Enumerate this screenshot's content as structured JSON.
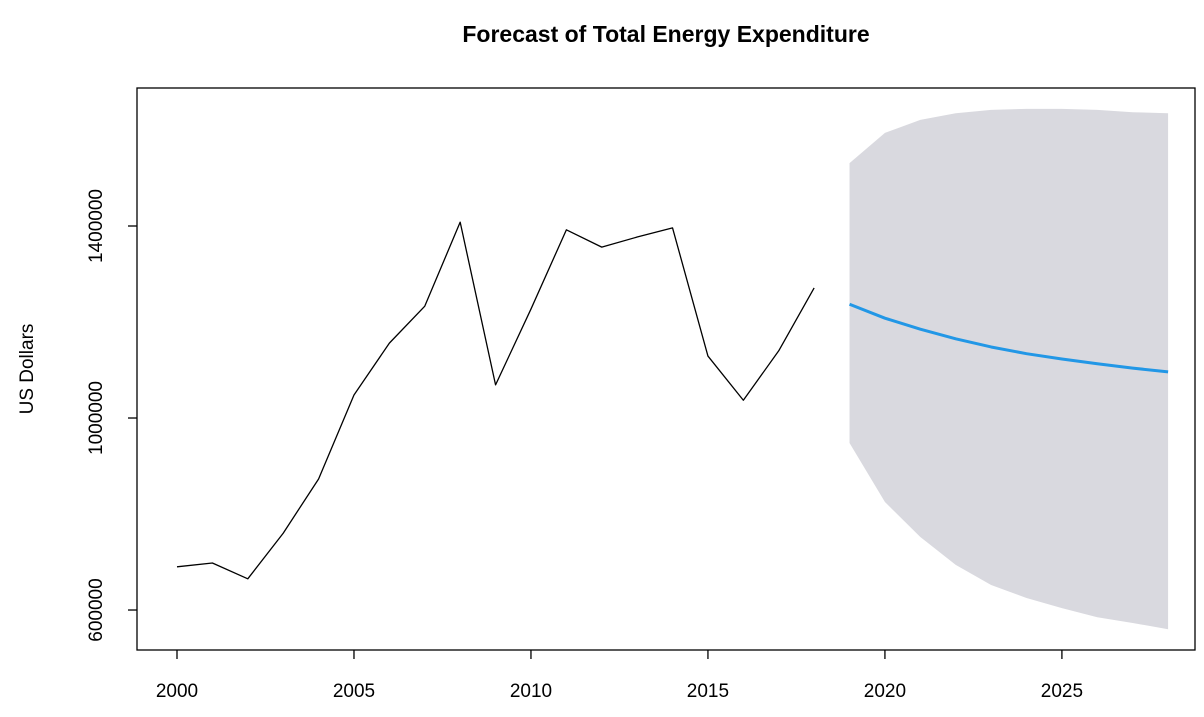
{
  "chart_data": {
    "type": "line",
    "title": "Forecast of Total Energy Expenditure",
    "ylabel": "US Dollars",
    "xlim": [
      1998.87,
      2028.76
    ],
    "xticks": [
      2000,
      2005,
      2010,
      2015,
      2020,
      2025
    ],
    "ylim": [
      516700,
      1687500
    ],
    "yticks": [
      600000,
      1000000,
      1400000
    ],
    "band": {
      "color": "#d9d9df",
      "x": [
        2019,
        2020,
        2021,
        2022,
        2023,
        2024,
        2025,
        2026,
        2027,
        2028
      ],
      "lower": [
        948000,
        825000,
        752000,
        694000,
        652000,
        625000,
        604000,
        585000,
        573000,
        560000
      ],
      "upper": [
        1531000,
        1594000,
        1621000,
        1635000,
        1642000,
        1644000,
        1644000,
        1642000,
        1637000,
        1635000
      ]
    },
    "series": [
      {
        "color": "#000000",
        "x": [
          2000,
          2001,
          2002,
          2003,
          2004,
          2005,
          2006,
          2007,
          2008,
          2009,
          2010,
          2011,
          2012,
          2013,
          2014,
          2015,
          2016,
          2017,
          2018
        ],
        "values": [
          690000,
          698000,
          665000,
          760000,
          873000,
          1048000,
          1156000,
          1233000,
          1408000,
          1069000,
          1227000,
          1392000,
          1356000,
          1377000,
          1396000,
          1129000,
          1037000,
          1140000,
          1271000
        ]
      },
      {
        "color": "#2297e6",
        "x": [
          2019,
          2020,
          2021,
          2022,
          2023,
          2024,
          2025,
          2026,
          2027,
          2028
        ],
        "values": [
          1237000,
          1208000,
          1185000,
          1165000,
          1148000,
          1134000,
          1123000,
          1113000,
          1104000,
          1096000
        ]
      }
    ]
  }
}
